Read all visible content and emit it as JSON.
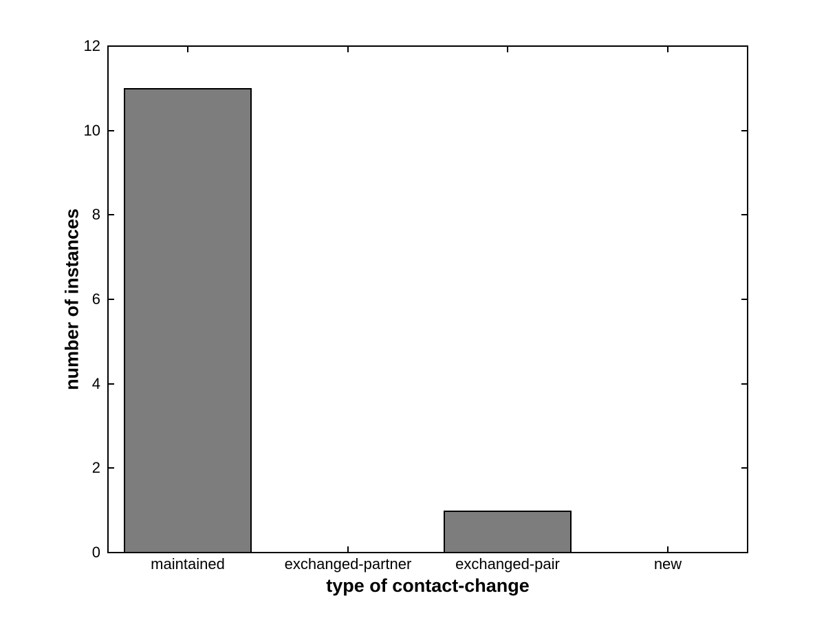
{
  "chart_data": {
    "type": "bar",
    "title": "",
    "categories": [
      "maintained",
      "exchanged-partner",
      "exchanged-pair",
      "new"
    ],
    "values": [
      11,
      0,
      1,
      0
    ],
    "xlabel": "type of contact-change",
    "ylabel": "number of instances",
    "ylim": [
      0,
      12
    ],
    "ytick_step": 2,
    "ytick_labels": [
      "0",
      "2",
      "4",
      "6",
      "8",
      "10",
      "12"
    ],
    "bar_width_fraction": 0.8,
    "grid": false,
    "legend": null,
    "box": true,
    "colors": {
      "bar_fill": "#7d7d7d",
      "bar_edge": "#000000",
      "axis": "#000000",
      "text": "#000000",
      "background": "#ffffff"
    }
  }
}
